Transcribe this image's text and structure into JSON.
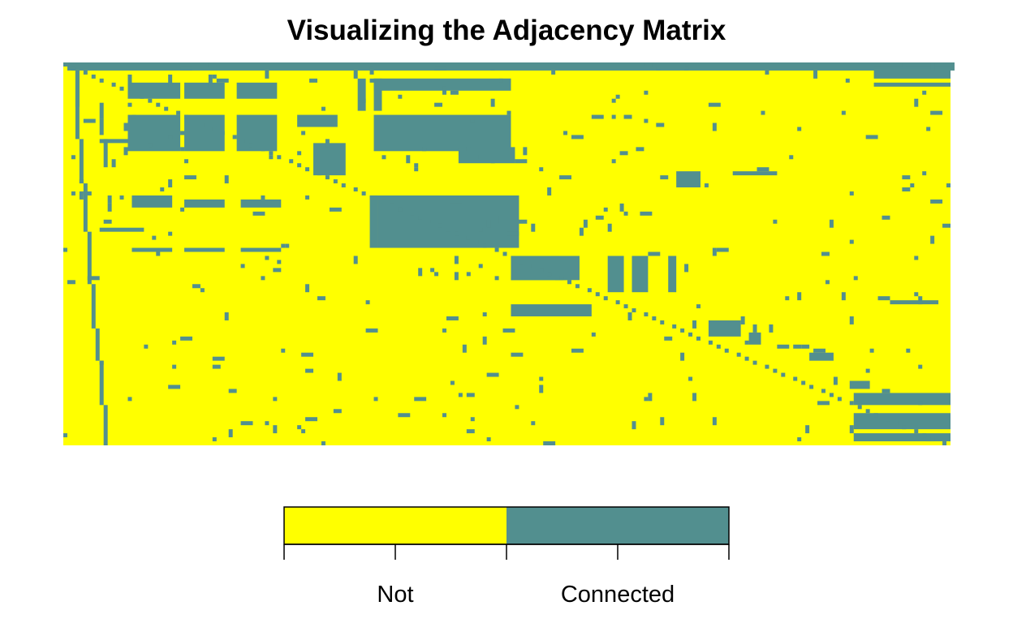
{
  "chart_data": {
    "type": "heatmap",
    "title": "Visualizing the Adjacency Matrix",
    "xlabel": "",
    "ylabel": "",
    "colors": {
      "Not": "#ffff00",
      "Connected": "#528f8f"
    },
    "legend": {
      "position": "bottom",
      "categories": [
        "Not",
        "Connected"
      ]
    },
    "grid": false,
    "grid_units": [
      220,
      95
    ],
    "connected_blocks": [
      [
        3,
        2,
        1,
        9
      ],
      [
        1,
        0,
        220,
        2
      ],
      [
        16,
        5,
        13,
        4
      ],
      [
        30,
        5,
        10,
        4
      ],
      [
        43,
        5,
        10,
        4
      ],
      [
        16,
        13,
        13,
        9
      ],
      [
        30,
        13,
        10,
        9
      ],
      [
        43,
        13,
        10,
        9
      ],
      [
        16,
        3,
        1,
        3
      ],
      [
        26,
        3,
        1,
        3
      ],
      [
        36,
        3,
        1,
        3
      ],
      [
        73,
        4,
        2,
        8
      ],
      [
        77,
        4,
        2,
        8
      ],
      [
        76,
        4,
        35,
        1
      ],
      [
        77,
        13,
        34,
        9
      ],
      [
        77,
        4,
        34,
        3
      ],
      [
        9,
        10,
        1,
        4
      ],
      [
        9,
        14,
        1,
        4
      ],
      [
        50,
        2,
        1,
        2
      ],
      [
        10,
        19,
        1,
        7
      ],
      [
        9,
        19,
        11,
        1
      ],
      [
        9,
        41,
        11,
        1
      ],
      [
        17,
        33,
        10,
        3
      ],
      [
        30,
        34,
        10,
        2
      ],
      [
        44,
        34,
        10,
        2
      ],
      [
        17,
        46,
        10,
        1
      ],
      [
        30,
        46,
        10,
        1
      ],
      [
        44,
        46,
        10,
        1
      ],
      [
        76,
        33,
        2,
        13
      ],
      [
        78,
        33,
        35,
        13
      ],
      [
        58,
        13,
        10,
        3
      ],
      [
        62,
        20,
        8,
        8
      ],
      [
        98,
        21,
        14,
        4
      ],
      [
        111,
        48,
        17,
        6
      ],
      [
        111,
        53,
        15,
        1
      ],
      [
        111,
        60,
        20,
        3
      ],
      [
        135,
        48,
        4,
        9
      ],
      [
        141,
        48,
        4,
        9
      ],
      [
        150,
        48,
        2,
        9
      ],
      [
        160,
        64,
        8,
        4
      ],
      [
        170,
        67,
        3,
        3
      ],
      [
        185,
        72,
        6,
        2
      ],
      [
        195,
        79,
        5,
        2
      ],
      [
        196,
        82,
        24,
        3
      ],
      [
        196,
        87,
        24,
        4
      ],
      [
        196,
        92,
        24,
        2
      ],
      [
        152,
        27,
        6,
        4
      ],
      [
        166,
        27,
        11,
        1
      ],
      [
        201,
        1,
        19,
        3
      ],
      [
        201,
        5,
        19,
        1
      ],
      [
        215,
        12,
        3,
        1
      ],
      [
        219,
        30,
        1,
        1
      ],
      [
        205,
        59,
        12,
        1
      ]
    ]
  }
}
